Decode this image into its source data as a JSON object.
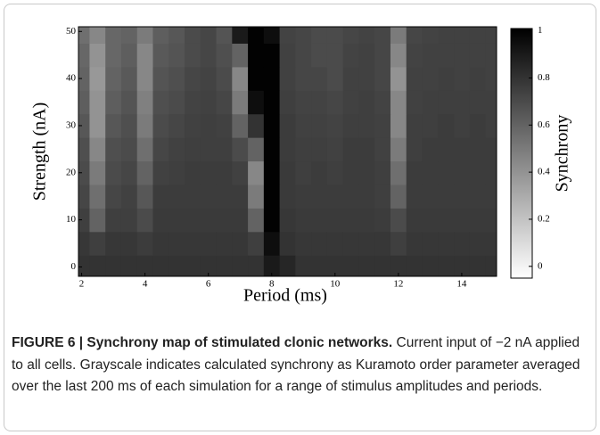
{
  "chart_data": {
    "type": "heatmap",
    "xlabel": "Period (ms)",
    "ylabel": "Strength (nA)",
    "colorbar_label": "Synchrony",
    "x": [
      2,
      2.5,
      3,
      3.5,
      4,
      4.5,
      5,
      5.5,
      6,
      6.5,
      7,
      7.5,
      8,
      8.5,
      9,
      9.5,
      10,
      10.5,
      11,
      11.5,
      12,
      12.5,
      13,
      13.5,
      14,
      14.5,
      15
    ],
    "y": [
      0,
      5,
      10,
      15,
      20,
      25,
      30,
      35,
      40,
      45,
      50
    ],
    "z": [
      [
        0.8,
        0.8,
        0.8,
        0.8,
        0.8,
        0.8,
        0.8,
        0.8,
        0.8,
        0.8,
        0.8,
        0.8,
        0.9,
        0.85,
        0.8,
        0.8,
        0.8,
        0.8,
        0.8,
        0.8,
        0.8,
        0.8,
        0.8,
        0.8,
        0.8,
        0.8,
        0.8
      ],
      [
        0.78,
        0.75,
        0.78,
        0.78,
        0.76,
        0.78,
        0.78,
        0.78,
        0.78,
        0.78,
        0.78,
        0.75,
        0.95,
        0.8,
        0.78,
        0.78,
        0.78,
        0.78,
        0.78,
        0.78,
        0.75,
        0.78,
        0.78,
        0.78,
        0.78,
        0.78,
        0.78
      ],
      [
        0.75,
        0.6,
        0.75,
        0.75,
        0.7,
        0.77,
        0.77,
        0.77,
        0.77,
        0.77,
        0.77,
        0.6,
        1,
        0.78,
        0.77,
        0.77,
        0.77,
        0.77,
        0.77,
        0.76,
        0.7,
        0.77,
        0.77,
        0.77,
        0.77,
        0.77,
        0.77
      ],
      [
        0.72,
        0.55,
        0.72,
        0.74,
        0.65,
        0.76,
        0.76,
        0.76,
        0.76,
        0.76,
        0.76,
        0.5,
        1,
        0.77,
        0.76,
        0.76,
        0.76,
        0.76,
        0.76,
        0.75,
        0.6,
        0.76,
        0.76,
        0.76,
        0.76,
        0.76,
        0.76
      ],
      [
        0.7,
        0.5,
        0.7,
        0.72,
        0.6,
        0.74,
        0.75,
        0.76,
        0.76,
        0.76,
        0.74,
        0.45,
        1,
        0.77,
        0.75,
        0.76,
        0.75,
        0.76,
        0.76,
        0.75,
        0.55,
        0.76,
        0.76,
        0.76,
        0.76,
        0.76,
        0.76
      ],
      [
        0.68,
        0.45,
        0.68,
        0.7,
        0.55,
        0.72,
        0.74,
        0.75,
        0.75,
        0.75,
        0.7,
        0.6,
        1,
        0.76,
        0.75,
        0.75,
        0.74,
        0.76,
        0.76,
        0.74,
        0.5,
        0.75,
        0.76,
        0.76,
        0.76,
        0.76,
        0.76
      ],
      [
        0.65,
        0.4,
        0.65,
        0.68,
        0.5,
        0.7,
        0.72,
        0.74,
        0.75,
        0.74,
        0.6,
        0.8,
        1,
        0.76,
        0.74,
        0.74,
        0.73,
        0.75,
        0.75,
        0.74,
        0.45,
        0.75,
        0.75,
        0.76,
        0.75,
        0.76,
        0.75
      ],
      [
        0.62,
        0.4,
        0.62,
        0.66,
        0.48,
        0.68,
        0.7,
        0.73,
        0.74,
        0.72,
        0.5,
        0.95,
        1,
        0.75,
        0.73,
        0.73,
        0.72,
        0.74,
        0.75,
        0.73,
        0.45,
        0.74,
        0.75,
        0.75,
        0.75,
        0.75,
        0.75
      ],
      [
        0.6,
        0.38,
        0.6,
        0.64,
        0.45,
        0.66,
        0.68,
        0.72,
        0.73,
        0.7,
        0.45,
        1,
        1,
        0.74,
        0.72,
        0.72,
        0.7,
        0.74,
        0.74,
        0.72,
        0.4,
        0.74,
        0.74,
        0.75,
        0.74,
        0.75,
        0.74
      ],
      [
        0.58,
        0.4,
        0.58,
        0.62,
        0.45,
        0.64,
        0.66,
        0.7,
        0.72,
        0.68,
        0.6,
        1,
        1,
        0.74,
        0.72,
        0.7,
        0.7,
        0.73,
        0.74,
        0.72,
        0.45,
        0.73,
        0.74,
        0.74,
        0.74,
        0.74,
        0.74
      ],
      [
        0.55,
        0.45,
        0.58,
        0.6,
        0.5,
        0.62,
        0.65,
        0.7,
        0.72,
        0.66,
        0.9,
        1,
        0.95,
        0.73,
        0.72,
        0.7,
        0.7,
        0.72,
        0.73,
        0.72,
        0.5,
        0.72,
        0.73,
        0.74,
        0.74,
        0.74,
        0.74
      ]
    ],
    "xlim": [
      1.9,
      15.1
    ],
    "xticks": [
      2,
      4,
      6,
      8,
      10,
      12,
      14
    ],
    "ylim": [
      -2,
      51
    ],
    "yticks": [
      0,
      10,
      20,
      30,
      40,
      50
    ],
    "clim": [
      -0.05,
      1.01
    ],
    "cticks": [
      0,
      0.2,
      0.4,
      0.6,
      0.8,
      1
    ]
  },
  "caption": {
    "label": "FIGURE 6 | Synchrony map of stimulated clonic networks.",
    "text": "Current input of −2 nA applied to all cells. Grayscale indicates calculated synchrony as Kuramoto order parameter averaged over the last 200 ms of each simulation for a range of stimulus amplitudes and periods."
  }
}
